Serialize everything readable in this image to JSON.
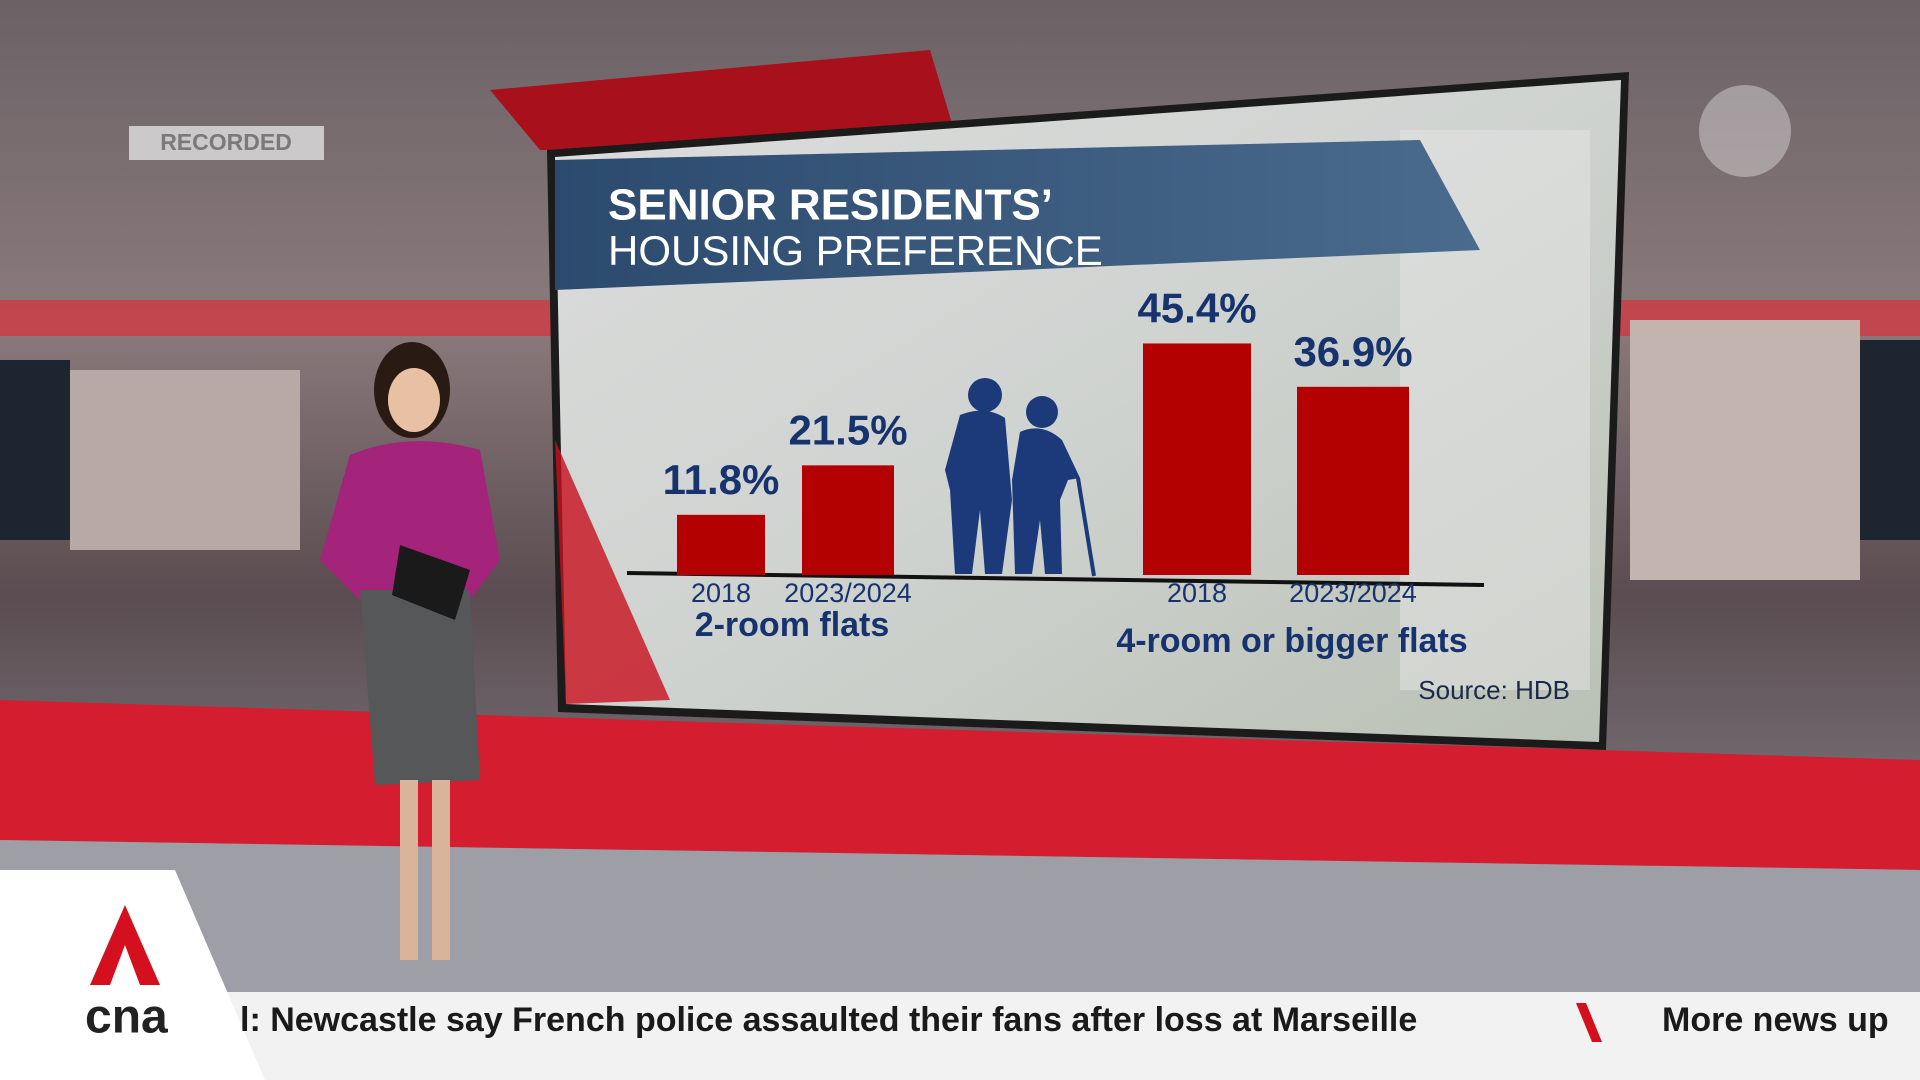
{
  "recorded": "RECORDED",
  "chart_data": {
    "type": "bar",
    "title": "SENIOR RESIDENTS’",
    "subtitle": "HOUSING PREFERENCE",
    "color": "#b30000",
    "groups": [
      {
        "name": "2-room flats",
        "categories": [
          "2018",
          "2023/2024"
        ],
        "values": [
          11.8,
          21.5
        ],
        "value_labels": [
          "11.8%",
          "21.5%"
        ]
      },
      {
        "name": "4-room or bigger flats",
        "categories": [
          "2018",
          "2023/2024"
        ],
        "values": [
          45.4,
          36.9
        ],
        "value_labels": [
          "45.4%",
          "36.9%"
        ]
      }
    ],
    "source": "Source: HDB"
  },
  "ticker": {
    "logo": "cna",
    "headline": "l: Newcastle say French police assaulted their fans after loss at Marseille",
    "next": "More news up"
  }
}
